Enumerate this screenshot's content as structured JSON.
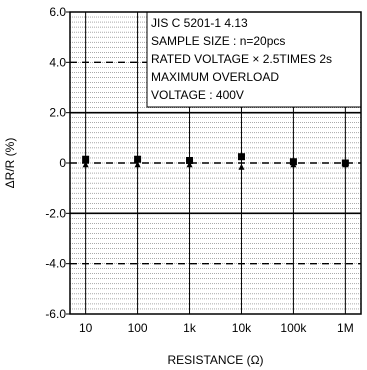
{
  "chart_data": {
    "type": "scatter",
    "xlabel": "RESISTANCE (Ω)",
    "ylabel": "ΔR/R (%)",
    "x_scale": "log",
    "x_ticks": [
      "10",
      "100",
      "1k",
      "10k",
      "100k",
      "1M"
    ],
    "x_tick_values": [
      10,
      100,
      1000,
      10000,
      100000,
      1000000
    ],
    "xlim": [
      5,
      2000000
    ],
    "ylim": [
      -6.0,
      6.0
    ],
    "y_ticks": [
      "6.0",
      "4.0",
      "2.0",
      "0",
      "-2.0",
      "-4.0",
      "-6.0"
    ],
    "y_tick_values": [
      6,
      4,
      2,
      0,
      -2,
      -4,
      -6
    ],
    "minor_grid_step": 0.2,
    "dashed_lines": [
      4.0,
      0,
      -4.0
    ],
    "solid_lines": [
      2.0,
      -2.0
    ],
    "grid": true,
    "annotation_lines": [
      "JIS C 5201-1 4.13",
      "SAMPLE SIZE : n=20pcs",
      "RATED VOLTAGE × 2.5TIMES 2s",
      "MAXIMUM OVERLOAD",
      "VOLTAGE : 400V"
    ],
    "annotation_position": "top-right",
    "series": [
      {
        "marker": "square",
        "x": [
          10,
          100,
          1000,
          10000,
          100000,
          1000000
        ],
        "y": [
          0.15,
          0.15,
          0.1,
          0.25,
          0.05,
          0.0
        ]
      },
      {
        "marker": "triangle",
        "x": [
          10,
          100,
          1000,
          10000,
          100000,
          1000000
        ],
        "y": [
          -0.05,
          -0.05,
          -0.05,
          -0.15,
          -0.05,
          -0.05
        ]
      }
    ],
    "colors": {
      "line": "#000000",
      "background": "#ffffff"
    }
  }
}
